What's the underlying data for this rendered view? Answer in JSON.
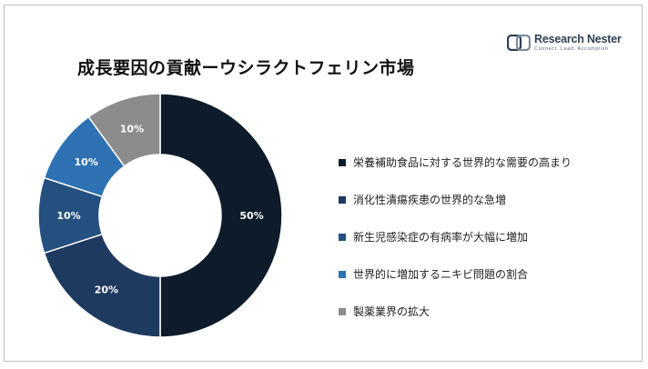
{
  "title": "成長要因の貢献ーウシラクトフェリン市場",
  "logo": {
    "name": "Research Nester",
    "tagline": "Connect. Lead. Accomplish",
    "icon": "research-nester-logo-icon"
  },
  "chart_data": {
    "type": "pie",
    "style": "donut",
    "categories": [
      "栄養補助食品に対する世界的な需要の高まり",
      "消化性潰瘍疾患の世界的な急増",
      "新生児感染症の有病率が大幅に増加",
      "世界的に増加するニキビ問題の割合",
      "製薬業界の拡大"
    ],
    "values": [
      50,
      20,
      10,
      10,
      10
    ],
    "data_labels": [
      "50%",
      "20%",
      "10%",
      "10%",
      "10%"
    ],
    "colors": [
      "#0d1b2a",
      "#1f3a5f",
      "#23507e",
      "#2e72b4",
      "#8c8c8c"
    ],
    "legend_position": "right"
  }
}
